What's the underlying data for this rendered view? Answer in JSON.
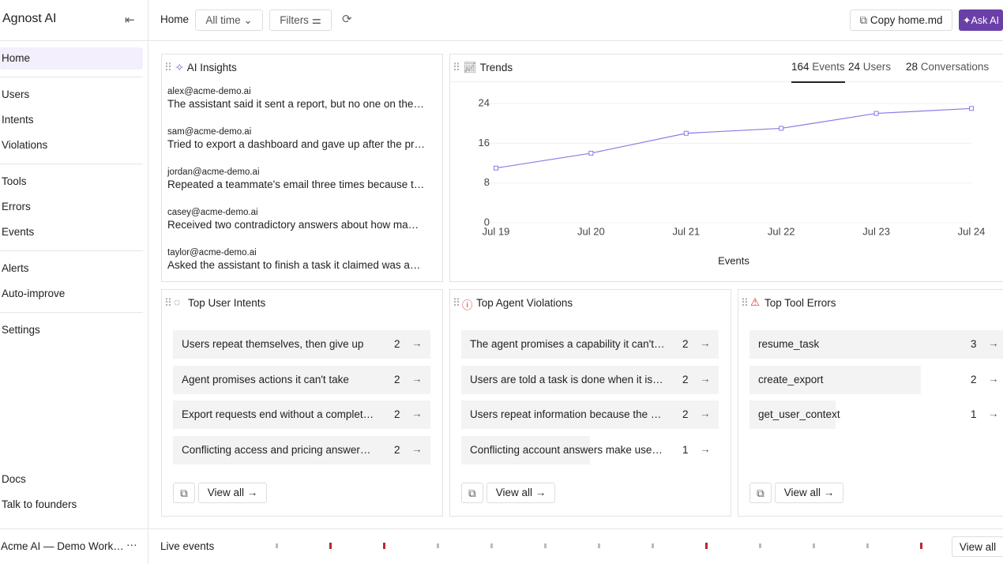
{
  "sidebar": {
    "brand": "Agnost AI",
    "nav": [
      [
        "Home"
      ],
      [
        "Users",
        "Intents",
        "Violations"
      ],
      [
        "Tools",
        "Errors",
        "Events"
      ],
      [
        "Alerts",
        "Auto-improve"
      ],
      [
        "Settings"
      ]
    ],
    "bottom": [
      "Docs",
      "Talk to founders"
    ],
    "workspace": "Acme AI — Demo Work…"
  },
  "toolbar": {
    "breadcrumb": "Home",
    "range": "All time",
    "filters": "Filters",
    "copy": "Copy home.md",
    "ask": "Ask AI"
  },
  "insights": {
    "title": "AI Insights",
    "items": [
      {
        "email": "alex@acme-demo.ai",
        "text": "The assistant said it sent a report, but no one on the…"
      },
      {
        "email": "sam@acme-demo.ai",
        "text": "Tried to export a dashboard and gave up after the pr…"
      },
      {
        "email": "jordan@acme-demo.ai",
        "text": "Repeated a teammate's email three times because t…"
      },
      {
        "email": "casey@acme-demo.ai",
        "text": "Received two contradictory answers about how ma…"
      },
      {
        "email": "taylor@acme-demo.ai",
        "text": "Asked the assistant to finish a task it claimed was a…"
      }
    ]
  },
  "trends": {
    "title": "Trends",
    "tabs": [
      {
        "count": 164,
        "label": "Events"
      },
      {
        "count": 24,
        "label": "Users"
      },
      {
        "count": 28,
        "label": "Conversations"
      }
    ],
    "chart": {
      "type": "line",
      "categories": [
        "Jul 19",
        "Jul 20",
        "Jul 21",
        "Jul 22",
        "Jul 23",
        "Jul 24"
      ],
      "values": [
        11,
        14,
        18,
        19,
        22,
        23
      ],
      "color": "#8b7ae6",
      "ylim": [
        0,
        24
      ],
      "yticks": [
        0,
        8,
        16,
        24
      ],
      "grid": true,
      "x_label": "Events"
    }
  },
  "panels": [
    {
      "title": "Top User Intents",
      "rows": [
        {
          "label": "Users repeat themselves, then give up",
          "count": 2
        },
        {
          "label": "Agent promises actions it can't take",
          "count": 2
        },
        {
          "label": "Export requests end without a complet…",
          "count": 2
        },
        {
          "label": "Conflicting access and pricing answer…",
          "count": 2
        }
      ],
      "view_all": "View all"
    },
    {
      "title": "Top Agent Violations",
      "rows": [
        {
          "label": "The agent promises a capability it can't…",
          "count": 2
        },
        {
          "label": "Users are told a task is done when it is…",
          "count": 2
        },
        {
          "label": "Users repeat information because the …",
          "count": 2
        },
        {
          "label": "Conflicting account answers make use…",
          "count": 1
        }
      ],
      "view_all": "View all"
    },
    {
      "title": "Top Tool Errors",
      "rows": [
        {
          "label": "resume_task",
          "count": 3
        },
        {
          "label": "create_export",
          "count": 2
        },
        {
          "label": "get_user_context",
          "count": 1
        }
      ],
      "view_all": "View all"
    }
  ],
  "footer": {
    "live": "Live events",
    "view_all": "View all"
  }
}
